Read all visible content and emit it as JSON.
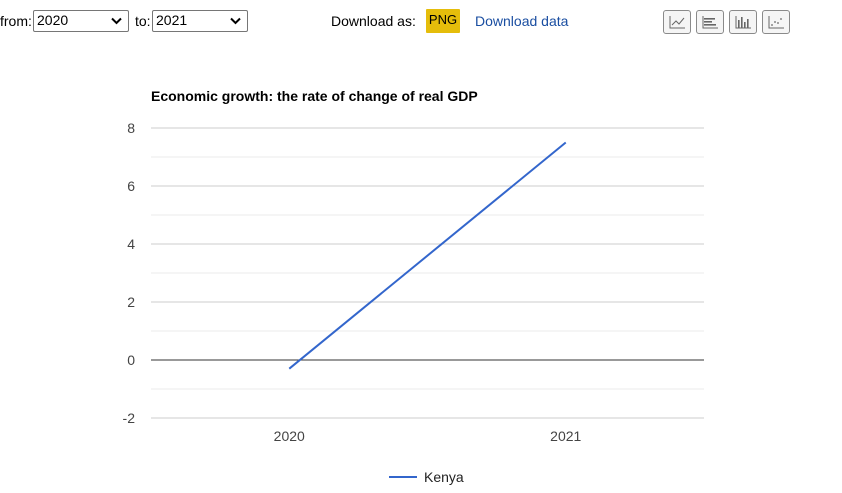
{
  "controls": {
    "from_label": "from:",
    "from_value": "2020",
    "to_label": "to:",
    "to_value": "2021",
    "download_as_label": "Download as:",
    "png_label": "PNG",
    "download_data_label": "Download data",
    "chart_type_buttons": [
      "line-chart-icon",
      "horizontal-bar-icon",
      "vertical-bar-icon",
      "scatter-icon"
    ]
  },
  "colors": {
    "series": "#3366cc",
    "png_button": "#e5bd0b",
    "link": "#1a4ea1"
  },
  "chart_data": {
    "type": "line",
    "title": "Economic growth: the rate of change of real GDP",
    "xlabel": "",
    "ylabel": "",
    "x": [
      "2020",
      "2021"
    ],
    "ylim": [
      -2,
      8
    ],
    "yticks": [
      -2,
      0,
      2,
      4,
      6,
      8
    ],
    "grid": true,
    "legend_position": "bottom",
    "series": [
      {
        "name": "Kenya",
        "values": [
          -0.3,
          7.5
        ]
      }
    ]
  }
}
